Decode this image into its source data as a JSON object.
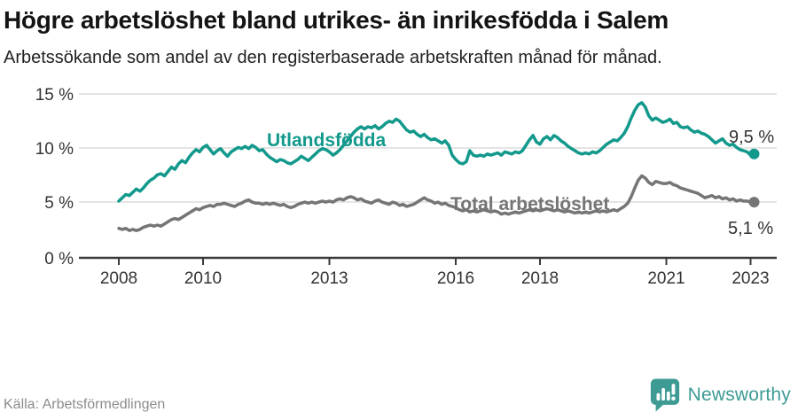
{
  "header": {
    "title": "Högre arbetslöshet bland utrikes- än inrikesfödda i Salem",
    "subtitle": "Arbetssökande som andel av den registerbaserade arbetskraften månad för månad."
  },
  "chart_data": {
    "type": "line",
    "unit": "%",
    "frequency": "monthly",
    "x_start_year": 2008,
    "x_end_year": 2023.17,
    "ylim": [
      0,
      15
    ],
    "grid": "horizontal",
    "y_ticks": [
      "15 %",
      "10 %",
      "5 %",
      "0 %"
    ],
    "x_ticks": [
      "2008",
      "2010",
      "2013",
      "2016",
      "2018",
      "2021",
      "2023"
    ],
    "x_tick_values": [
      2008,
      2010,
      2013,
      2016,
      2018,
      2021,
      2023
    ],
    "legend_position": "inline-labels",
    "series": [
      {
        "name": "Utlandsfödda",
        "color": "#12998c",
        "end_label": "9,5 %",
        "end_value": 9.5,
        "values": [
          5.2,
          5.5,
          5.8,
          5.7,
          6.0,
          6.3,
          6.1,
          6.4,
          6.8,
          7.1,
          7.3,
          7.6,
          7.7,
          7.5,
          7.9,
          8.3,
          8.1,
          8.6,
          8.9,
          8.7,
          9.2,
          9.6,
          9.9,
          9.7,
          10.1,
          10.3,
          9.9,
          9.5,
          9.8,
          10.0,
          9.6,
          9.3,
          9.7,
          9.9,
          10.1,
          10.0,
          10.2,
          10.0,
          10.3,
          10.1,
          9.8,
          9.9,
          9.5,
          9.2,
          9.0,
          8.8,
          9.0,
          8.9,
          8.7,
          8.6,
          8.8,
          9.0,
          9.3,
          9.1,
          8.9,
          9.2,
          9.5,
          9.8,
          10.0,
          9.9,
          9.7,
          9.4,
          9.6,
          9.9,
          10.3,
          10.7,
          11.1,
          11.5,
          11.8,
          12.0,
          11.8,
          12.0,
          11.9,
          12.1,
          11.8,
          12.0,
          12.3,
          12.5,
          12.4,
          12.7,
          12.5,
          12.1,
          11.7,
          11.5,
          11.6,
          11.3,
          11.1,
          11.3,
          11.0,
          10.8,
          10.9,
          10.7,
          10.5,
          10.7,
          10.3,
          9.4,
          9.0,
          8.7,
          8.6,
          8.8,
          9.8,
          9.4,
          9.3,
          9.4,
          9.3,
          9.5,
          9.4,
          9.5,
          9.6,
          9.4,
          9.7,
          9.6,
          9.5,
          9.7,
          9.6,
          9.8,
          10.3,
          10.8,
          11.2,
          10.6,
          10.4,
          10.9,
          11.1,
          10.8,
          11.2,
          11.0,
          10.7,
          10.5,
          10.2,
          10.0,
          9.8,
          9.6,
          9.5,
          9.6,
          9.5,
          9.7,
          9.6,
          9.8,
          10.1,
          10.4,
          10.6,
          10.8,
          10.7,
          11.0,
          11.4,
          12.0,
          12.8,
          13.5,
          14.0,
          14.2,
          13.8,
          13.0,
          12.6,
          12.8,
          12.6,
          12.4,
          12.5,
          12.7,
          12.3,
          12.4,
          12.0,
          11.9,
          12.0,
          11.7,
          11.5,
          11.6,
          11.4,
          11.3,
          11.1,
          10.8,
          10.5,
          10.7,
          10.9,
          10.5,
          10.3,
          10.4,
          10.1,
          9.9,
          9.8,
          9.7,
          9.4,
          9.5
        ]
      },
      {
        "name": "Total arbetslöshet",
        "color": "#757575",
        "end_label": "5,1 %",
        "end_value": 5.1,
        "values": [
          2.7,
          2.6,
          2.7,
          2.5,
          2.6,
          2.5,
          2.6,
          2.8,
          2.9,
          3.0,
          2.9,
          3.0,
          2.9,
          3.1,
          3.3,
          3.5,
          3.6,
          3.5,
          3.7,
          3.9,
          4.1,
          4.3,
          4.5,
          4.4,
          4.6,
          4.7,
          4.8,
          4.7,
          4.9,
          4.9,
          5.0,
          4.9,
          4.8,
          4.7,
          4.9,
          5.0,
          5.2,
          5.3,
          5.1,
          5.0,
          5.0,
          4.9,
          5.0,
          4.9,
          5.0,
          4.9,
          4.8,
          4.9,
          4.7,
          4.6,
          4.7,
          4.9,
          5.0,
          5.1,
          5.0,
          5.1,
          5.0,
          5.1,
          5.2,
          5.1,
          5.2,
          5.1,
          5.3,
          5.4,
          5.3,
          5.5,
          5.6,
          5.5,
          5.3,
          5.4,
          5.2,
          5.1,
          5.0,
          5.2,
          5.3,
          5.1,
          5.0,
          4.9,
          5.1,
          5.0,
          4.8,
          4.9,
          4.7,
          4.8,
          4.9,
          5.1,
          5.3,
          5.5,
          5.3,
          5.2,
          5.0,
          5.1,
          4.9,
          5.0,
          4.8,
          4.7,
          4.6,
          4.4,
          4.3,
          4.4,
          4.2,
          4.3,
          4.2,
          4.3,
          4.4,
          4.3,
          4.2,
          4.3,
          4.2,
          4.0,
          4.1,
          4.0,
          4.1,
          4.2,
          4.1,
          4.2,
          4.3,
          4.4,
          4.3,
          4.4,
          4.3,
          4.4,
          4.5,
          4.4,
          4.3,
          4.4,
          4.3,
          4.2,
          4.3,
          4.2,
          4.1,
          4.2,
          4.1,
          4.2,
          4.1,
          4.2,
          4.3,
          4.2,
          4.3,
          4.2,
          4.3,
          4.4,
          4.3,
          4.5,
          4.7,
          5.0,
          5.6,
          6.4,
          7.1,
          7.5,
          7.3,
          6.9,
          6.7,
          7.0,
          6.9,
          6.8,
          6.8,
          6.9,
          6.7,
          6.6,
          6.4,
          6.3,
          6.2,
          6.1,
          6.0,
          5.9,
          5.7,
          5.5,
          5.6,
          5.7,
          5.5,
          5.6,
          5.4,
          5.5,
          5.3,
          5.4,
          5.2,
          5.3,
          5.2,
          5.2,
          5.1,
          5.1
        ]
      }
    ]
  },
  "footer": {
    "source": "Källa: Arbetsförmedlingen",
    "brand": "Newsworthy",
    "brand_color": "#3e9b94"
  },
  "colors": {
    "accent_teal": "#12998c",
    "series_gray": "#757575",
    "axis": "#3a3a3a",
    "gridline": "#dcdcdc"
  }
}
